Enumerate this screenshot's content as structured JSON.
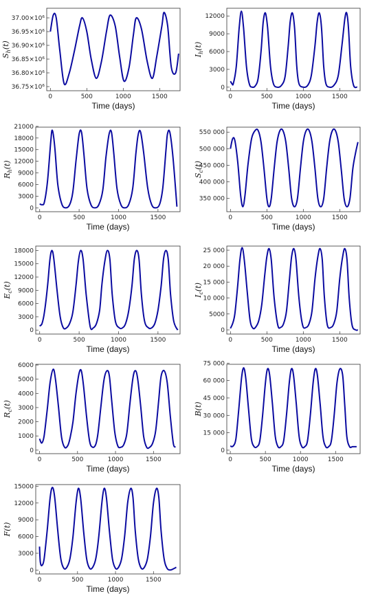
{
  "colors": {
    "line": "#0a0aa0",
    "frame": "#333333",
    "background": "#ffffff"
  },
  "chart_data": [
    {
      "type": "line",
      "ylabel": "S_h(t)",
      "ylabel_main": "S",
      "ylabel_sub": "h",
      "ylabel_arg": "(t)",
      "xlabel": "Time (days)",
      "xlim": [
        -50,
        1780
      ],
      "ylim": [
        36.735,
        37.035
      ],
      "xticks": [
        0,
        500,
        1000,
        1500
      ],
      "yticks": [
        36.75,
        36.8,
        36.85,
        36.9,
        36.95,
        37.0
      ],
      "ytick_labels": [
        "36.75×10⁶",
        "36.80×10⁶",
        "36.85×10⁶",
        "36.90×10⁶",
        "36.95×10⁶",
        "37.00×10⁶"
      ],
      "x": [
        0,
        40,
        80,
        130,
        190,
        260,
        330,
        400,
        440,
        500,
        560,
        630,
        700,
        770,
        820,
        890,
        950,
        1010,
        1080,
        1140,
        1180,
        1250,
        1330,
        1400,
        1460,
        1530,
        1560,
        1610,
        1660,
        1720,
        1760
      ],
      "y": [
        36.95,
        37.01,
        37.0,
        36.88,
        36.76,
        36.8,
        36.88,
        36.97,
        37.0,
        36.95,
        36.85,
        36.78,
        36.84,
        36.95,
        37.01,
        36.97,
        36.86,
        36.77,
        36.82,
        36.94,
        37.0,
        36.96,
        36.84,
        36.78,
        36.86,
        36.97,
        37.02,
        36.97,
        36.82,
        36.8,
        36.87
      ]
    },
    {
      "type": "line",
      "ylabel": "I_h(t)",
      "ylabel_main": "I",
      "ylabel_sub": "h",
      "ylabel_arg": "(t)",
      "xlabel": "Time (days)",
      "xlim": [
        -50,
        1780
      ],
      "ylim": [
        -600,
        13300
      ],
      "xticks": [
        0,
        500,
        1000,
        1500
      ],
      "yticks": [
        0,
        3000,
        6000,
        9000,
        12000
      ],
      "ytick_labels": [
        "0",
        "3000",
        "6000",
        "9000",
        "12000"
      ],
      "x": [
        0,
        20,
        40,
        80,
        120,
        150,
        180,
        220,
        260,
        300,
        340,
        380,
        420,
        450,
        480,
        510,
        550,
        590,
        640,
        700,
        750,
        790,
        820,
        850,
        880,
        910,
        940,
        1000,
        1060,
        1110,
        1160,
        1190,
        1220,
        1250,
        1280,
        1310,
        1360,
        1420,
        1480,
        1530,
        1570,
        1595,
        1620,
        1650,
        1690,
        1740
      ],
      "y": [
        1000,
        600,
        600,
        3500,
        10000,
        12800,
        10000,
        3500,
        500,
        0,
        200,
        1500,
        6000,
        11000,
        12500,
        10000,
        3500,
        600,
        0,
        300,
        1800,
        6500,
        11000,
        12500,
        10000,
        3500,
        600,
        0,
        300,
        2000,
        7000,
        11000,
        12500,
        10000,
        3500,
        600,
        0,
        300,
        2000,
        7000,
        11500,
        12500,
        10000,
        3500,
        300,
        0
      ]
    },
    {
      "type": "line",
      "ylabel": "R_h(t)",
      "ylabel_main": "R",
      "ylabel_sub": "h",
      "ylabel_arg": "(t)",
      "xlabel": "Time (days)",
      "xlim": [
        -50,
        1780
      ],
      "ylim": [
        -1000,
        20800
      ],
      "xticks": [
        0,
        500,
        1000,
        1500
      ],
      "yticks": [
        0,
        3000,
        6000,
        9000,
        12000,
        15000,
        18000,
        21000
      ],
      "ytick_labels": [
        "0",
        "3000",
        "6000",
        "9000",
        "12000",
        "15000",
        "18000",
        "21000"
      ],
      "x": [
        0,
        30,
        60,
        100,
        140,
        160,
        190,
        230,
        280,
        330,
        380,
        420,
        460,
        500,
        530,
        560,
        600,
        650,
        700,
        750,
        800,
        840,
        880,
        910,
        940,
        980,
        1030,
        1080,
        1130,
        1180,
        1220,
        1250,
        1280,
        1320,
        1370,
        1420,
        1470,
        1520,
        1560,
        1600,
        1620,
        1650,
        1690,
        1740
      ],
      "y": [
        1000,
        800,
        1500,
        7000,
        17000,
        20000,
        16000,
        6000,
        1000,
        0,
        800,
        4000,
        12000,
        19000,
        19500,
        14000,
        5000,
        800,
        0,
        800,
        4500,
        13000,
        19000,
        19500,
        14000,
        5000,
        800,
        0,
        900,
        5000,
        14000,
        19000,
        19500,
        14000,
        5000,
        800,
        0,
        900,
        5000,
        14500,
        19000,
        19500,
        13000,
        300
      ]
    },
    {
      "type": "line",
      "ylabel": "S_c(t)",
      "ylabel_main": "S",
      "ylabel_sub": "c",
      "ylabel_arg": "(t)",
      "xlabel": "Time (days)",
      "xlim": [
        -50,
        1780
      ],
      "ylim": [
        310000,
        565000
      ],
      "xticks": [
        0,
        500,
        1000,
        1500
      ],
      "yticks": [
        350000,
        400000,
        450000,
        500000,
        550000
      ],
      "ytick_labels": [
        "350 000",
        "400 000",
        "450 000",
        "500 000",
        "550 000"
      ],
      "x": [
        0,
        30,
        60,
        100,
        140,
        170,
        200,
        240,
        290,
        340,
        380,
        420,
        460,
        500,
        530,
        560,
        600,
        640,
        680,
        720,
        760,
        800,
        840,
        880,
        920,
        960,
        1000,
        1040,
        1080,
        1120,
        1160,
        1200,
        1240,
        1280,
        1320,
        1360,
        1400,
        1440,
        1480,
        1520,
        1560,
        1600,
        1640,
        1680,
        1720,
        1750
      ],
      "y": [
        500000,
        530000,
        525000,
        460000,
        360000,
        325000,
        360000,
        450000,
        530000,
        555000,
        555000,
        520000,
        440000,
        350000,
        325000,
        350000,
        440000,
        520000,
        555000,
        555000,
        520000,
        440000,
        350000,
        325000,
        350000,
        440000,
        520000,
        555000,
        555000,
        520000,
        440000,
        350000,
        325000,
        350000,
        440000,
        520000,
        555000,
        555000,
        520000,
        440000,
        350000,
        325000,
        350000,
        440000,
        490000,
        520000
      ]
    },
    {
      "type": "line",
      "ylabel": "E_c(t)",
      "ylabel_main": "E",
      "ylabel_sub": "c",
      "ylabel_arg": "(t)",
      "xlabel": "Time (days)",
      "xlim": [
        -50,
        1780
      ],
      "ylim": [
        -900,
        19000
      ],
      "xticks": [
        0,
        500,
        1000,
        1500
      ],
      "yticks": [
        0,
        3000,
        6000,
        9000,
        12000,
        15000,
        18000
      ],
      "ytick_labels": [
        "0",
        "3000",
        "6000",
        "9000",
        "12000",
        "15000",
        "18000"
      ],
      "x": [
        0,
        30,
        60,
        100,
        130,
        155,
        180,
        220,
        260,
        300,
        340,
        380,
        420,
        460,
        490,
        520,
        550,
        590,
        640,
        680,
        720,
        760,
        790,
        830,
        860,
        890,
        920,
        960,
        1010,
        1050,
        1090,
        1130,
        1170,
        1200,
        1230,
        1260,
        1290,
        1330,
        1380,
        1420,
        1460,
        1500,
        1540,
        1570,
        1600,
        1630,
        1660,
        1700,
        1750
      ],
      "y": [
        900,
        1500,
        4000,
        10000,
        16000,
        18000,
        16000,
        9000,
        3000,
        500,
        500,
        1500,
        4000,
        10000,
        15500,
        18000,
        16000,
        8000,
        800,
        500,
        1500,
        4500,
        10500,
        16000,
        18000,
        16000,
        8000,
        2000,
        500,
        500,
        1500,
        4500,
        10000,
        16000,
        18000,
        16000,
        8000,
        2000,
        500,
        500,
        1500,
        4500,
        10000,
        16000,
        18000,
        16000,
        8000,
        2000,
        0
      ]
    },
    {
      "type": "line",
      "ylabel": "I_c(t)",
      "ylabel_main": "I",
      "ylabel_sub": "c",
      "ylabel_arg": "(t)",
      "xlabel": "Time (days)",
      "xlim": [
        -50,
        1780
      ],
      "ylim": [
        -1300,
        26300
      ],
      "xticks": [
        0,
        500,
        1000,
        1500
      ],
      "yticks": [
        0,
        5000,
        10000,
        15000,
        20000,
        25000
      ],
      "ytick_labels": [
        "0",
        "5000",
        "10 000",
        "15 000",
        "20 000",
        "25 000"
      ],
      "x": [
        0,
        30,
        60,
        100,
        130,
        160,
        190,
        230,
        270,
        310,
        350,
        390,
        430,
        470,
        500,
        530,
        560,
        600,
        650,
        690,
        730,
        770,
        810,
        840,
        870,
        900,
        940,
        990,
        1040,
        1080,
        1120,
        1160,
        1200,
        1230,
        1260,
        1290,
        1330,
        1380,
        1420,
        1460,
        1500,
        1540,
        1570,
        1600,
        1630,
        1670,
        1720,
        1750
      ],
      "y": [
        500,
        2000,
        5000,
        14000,
        22000,
        25800,
        22000,
        12000,
        3000,
        500,
        1000,
        3000,
        8000,
        17000,
        23000,
        25500,
        22000,
        10000,
        1500,
        800,
        2000,
        6000,
        16000,
        23000,
        25500,
        22000,
        10000,
        1500,
        800,
        2000,
        6000,
        16000,
        23000,
        25500,
        22000,
        10000,
        1500,
        800,
        2000,
        6000,
        16000,
        23000,
        25500,
        22000,
        10000,
        1500,
        0,
        0
      ]
    },
    {
      "type": "line",
      "ylabel": "R_c(t)",
      "ylabel_main": "R",
      "ylabel_sub": "c",
      "ylabel_arg": "(t)",
      "xlabel": "Time (days)",
      "xlim": [
        -50,
        1850
      ],
      "ylim": [
        -250,
        6050
      ],
      "xticks": [
        0,
        500,
        1000,
        1500
      ],
      "yticks": [
        0,
        1000,
        2000,
        3000,
        4000,
        5000,
        6000
      ],
      "ytick_labels": [
        "0",
        "1000",
        "2000",
        "3000",
        "4000",
        "5000",
        "6000"
      ],
      "x": [
        0,
        30,
        60,
        100,
        140,
        180,
        210,
        250,
        290,
        330,
        370,
        400,
        440,
        480,
        520,
        550,
        580,
        620,
        660,
        700,
        740,
        770,
        810,
        850,
        890,
        920,
        950,
        990,
        1030,
        1070,
        1110,
        1150,
        1190,
        1230,
        1260,
        1290,
        1330,
        1370,
        1410,
        1450,
        1490,
        1530,
        1570,
        1600,
        1640,
        1680,
        1720,
        1760,
        1790
      ],
      "y": [
        800,
        500,
        1000,
        2800,
        4800,
        5700,
        5000,
        3000,
        900,
        200,
        300,
        800,
        2000,
        4000,
        5400,
        5600,
        4500,
        2300,
        600,
        200,
        400,
        1200,
        3200,
        5000,
        5600,
        5200,
        3500,
        1300,
        300,
        200,
        400,
        1200,
        3300,
        5100,
        5600,
        5100,
        3200,
        1000,
        200,
        200,
        500,
        1400,
        3600,
        5200,
        5600,
        4800,
        2500,
        500,
        200
      ]
    },
    {
      "type": "line",
      "ylabel": "B(t)",
      "ylabel_main": "B",
      "ylabel_sub": "",
      "ylabel_arg": "(t)",
      "xlabel": "Time (days)",
      "xlim": [
        -50,
        1850
      ],
      "ylim": [
        -3000,
        74000
      ],
      "xticks": [
        0,
        500,
        1000,
        1500
      ],
      "yticks": [
        0,
        15000,
        30000,
        45000,
        60000,
        75000
      ],
      "ytick_labels": [
        "0",
        "15 000",
        "30 000",
        "45 000",
        "60 000",
        "75 000"
      ],
      "x": [
        0,
        40,
        80,
        120,
        160,
        190,
        220,
        260,
        300,
        340,
        380,
        420,
        460,
        500,
        530,
        560,
        600,
        640,
        680,
        720,
        760,
        800,
        840,
        870,
        900,
        940,
        980,
        1020,
        1060,
        1100,
        1140,
        1180,
        1210,
        1240,
        1280,
        1320,
        1360,
        1400,
        1440,
        1480,
        1520,
        1560,
        1600,
        1630,
        1660,
        1700,
        1740,
        1780,
        1800
      ],
      "y": [
        3500,
        3500,
        10000,
        35000,
        62000,
        71000,
        62000,
        35000,
        10000,
        3000,
        3000,
        8000,
        30000,
        58000,
        70000,
        65000,
        40000,
        12000,
        3000,
        3000,
        8000,
        30000,
        58000,
        70000,
        65000,
        40000,
        12000,
        3000,
        3000,
        8000,
        30000,
        58000,
        70000,
        65000,
        40000,
        12000,
        3000,
        3000,
        8000,
        30000,
        58000,
        70000,
        65000,
        40000,
        12000,
        3000,
        3000,
        3000,
        3000
      ]
    },
    {
      "type": "line",
      "ylabel": "F(t)",
      "ylabel_main": "F",
      "ylabel_sub": "",
      "ylabel_arg": "(t)",
      "xlabel": "Time (days)",
      "xlim": [
        -50,
        1850
      ],
      "ylim": [
        -700,
        15300
      ],
      "xticks": [
        0,
        500,
        1000,
        1500
      ],
      "yticks": [
        0,
        3000,
        6000,
        9000,
        12000,
        15000
      ],
      "ytick_labels": [
        "0",
        "3000",
        "6000",
        "9000",
        "12000",
        "15000"
      ],
      "x": [
        0,
        10,
        30,
        60,
        100,
        140,
        170,
        200,
        240,
        280,
        320,
        360,
        400,
        440,
        480,
        510,
        540,
        580,
        620,
        660,
        700,
        740,
        780,
        820,
        850,
        880,
        920,
        960,
        1000,
        1040,
        1080,
        1120,
        1160,
        1200,
        1230,
        1260,
        1300,
        1340,
        1380,
        1420,
        1460,
        1500,
        1540,
        1570,
        1600,
        1640,
        1680,
        1720,
        1760,
        1800
      ],
      "y": [
        4200,
        1500,
        800,
        2000,
        7000,
        13000,
        14800,
        13000,
        7000,
        2000,
        300,
        500,
        2000,
        6000,
        12000,
        14600,
        13000,
        7000,
        2000,
        300,
        500,
        2000,
        6000,
        12000,
        14600,
        13000,
        7000,
        2000,
        300,
        500,
        2000,
        6000,
        12000,
        14600,
        13000,
        7000,
        2000,
        300,
        500,
        2000,
        6000,
        12000,
        14600,
        13000,
        7000,
        2000,
        300,
        0,
        200,
        500
      ]
    }
  ]
}
